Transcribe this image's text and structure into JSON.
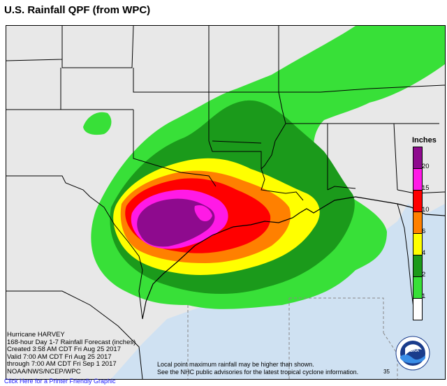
{
  "title": "U.S. Rainfall QPF (from WPC)",
  "info_lines": [
    "Hurricane HARVEY",
    "168-hour Day 1-7 Rainfall Forecast (inches)",
    "Created 3:58 AM CDT Fri Aug 25 2017",
    "Valid 7:00 AM CDT Fri Aug 25 2017",
    "through 7:00 AM CDT Fri Sep 1 2017",
    "NOAA/NWS/NCEP/WPC"
  ],
  "note_lines": [
    "Local point maximum rainfall may be higher than shown.",
    "See the NHC public advisories for the latest tropical cyclone information."
  ],
  "print_link": "Click Here for a Printer Friendly Graphic",
  "legend": {
    "title": "Inches",
    "levels": [
      {
        "label": "20",
        "color": "#8e0a8e"
      },
      {
        "label": "15",
        "color": "#ff1ae6"
      },
      {
        "label": "10",
        "color": "#ff0000"
      },
      {
        "label": "6",
        "color": "#ff8000"
      },
      {
        "label": "4",
        "color": "#ffff00"
      },
      {
        "label": "2",
        "color": "#1b9a1b"
      },
      {
        "label": "1",
        "color": "#38e038"
      },
      {
        "label": "",
        "color": "#ffffff"
      }
    ]
  },
  "logo": {
    "text": "NOAA",
    "icon": "noaa-logo-icon"
  },
  "corner_fragment": "35",
  "colors": {
    "land": "#e8e8e8",
    "ocean": "#cfe1f2"
  }
}
